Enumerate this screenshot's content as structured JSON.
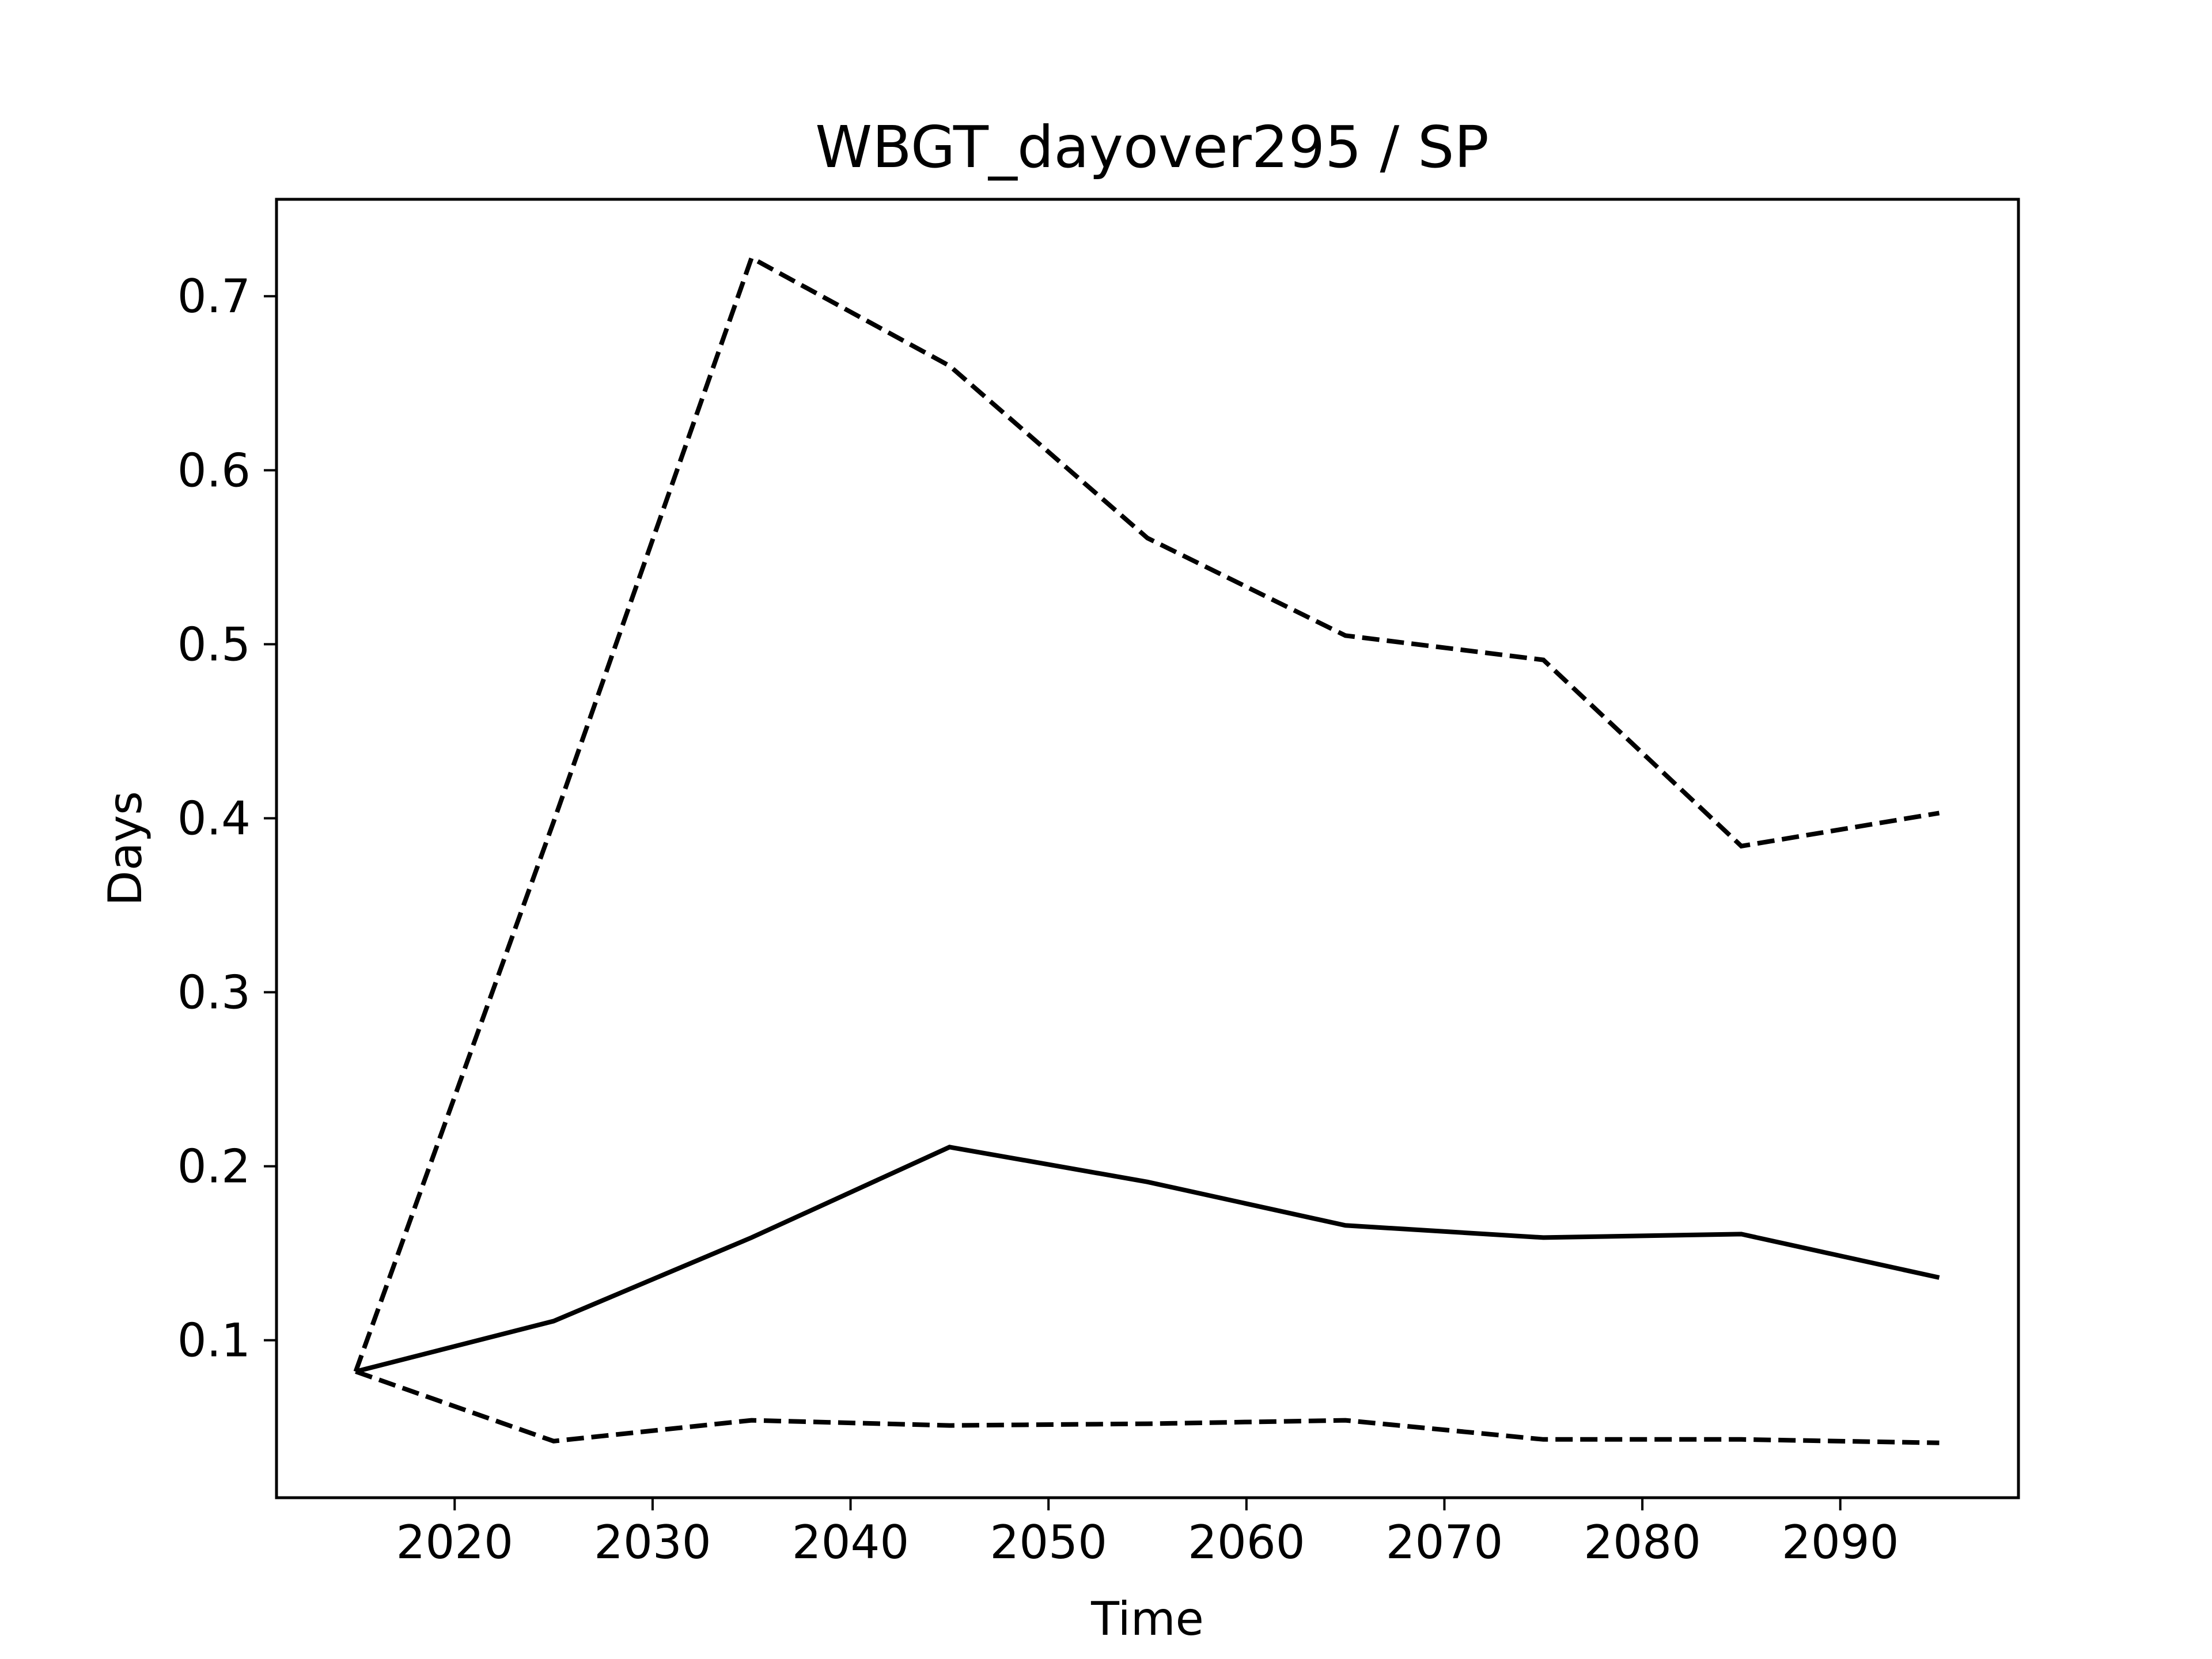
{
  "chart_data": {
    "type": "line",
    "title": "WBGT_dayover295 / SP",
    "xlabel": "Time",
    "ylabel": "Days",
    "xlim": [
      2011,
      2099
    ],
    "ylim": [
      0.0095,
      0.7557
    ],
    "grid": false,
    "x": [
      2015,
      2025,
      2035,
      2045,
      2055,
      2065,
      2075,
      2085,
      2095
    ],
    "xticks": [
      2020,
      2030,
      2040,
      2050,
      2060,
      2070,
      2080,
      2090
    ],
    "yticks": [
      0.1,
      0.2,
      0.3,
      0.4,
      0.5,
      0.6,
      0.7
    ],
    "series": [
      {
        "values": [
          0.082,
          0.111,
          0.159,
          0.211,
          0.191,
          0.166,
          0.159,
          0.161,
          0.136
        ],
        "style": "solid",
        "color": "#000000"
      },
      {
        "values": [
          0.082,
          0.398,
          0.722,
          0.66,
          0.561,
          0.505,
          0.491,
          0.384,
          0.403
        ],
        "style": "dashed",
        "color": "#000000"
      },
      {
        "values": [
          0.082,
          0.042,
          0.054,
          0.051,
          0.052,
          0.054,
          0.043,
          0.043,
          0.041
        ],
        "style": "dashed",
        "color": "#000000"
      }
    ]
  }
}
